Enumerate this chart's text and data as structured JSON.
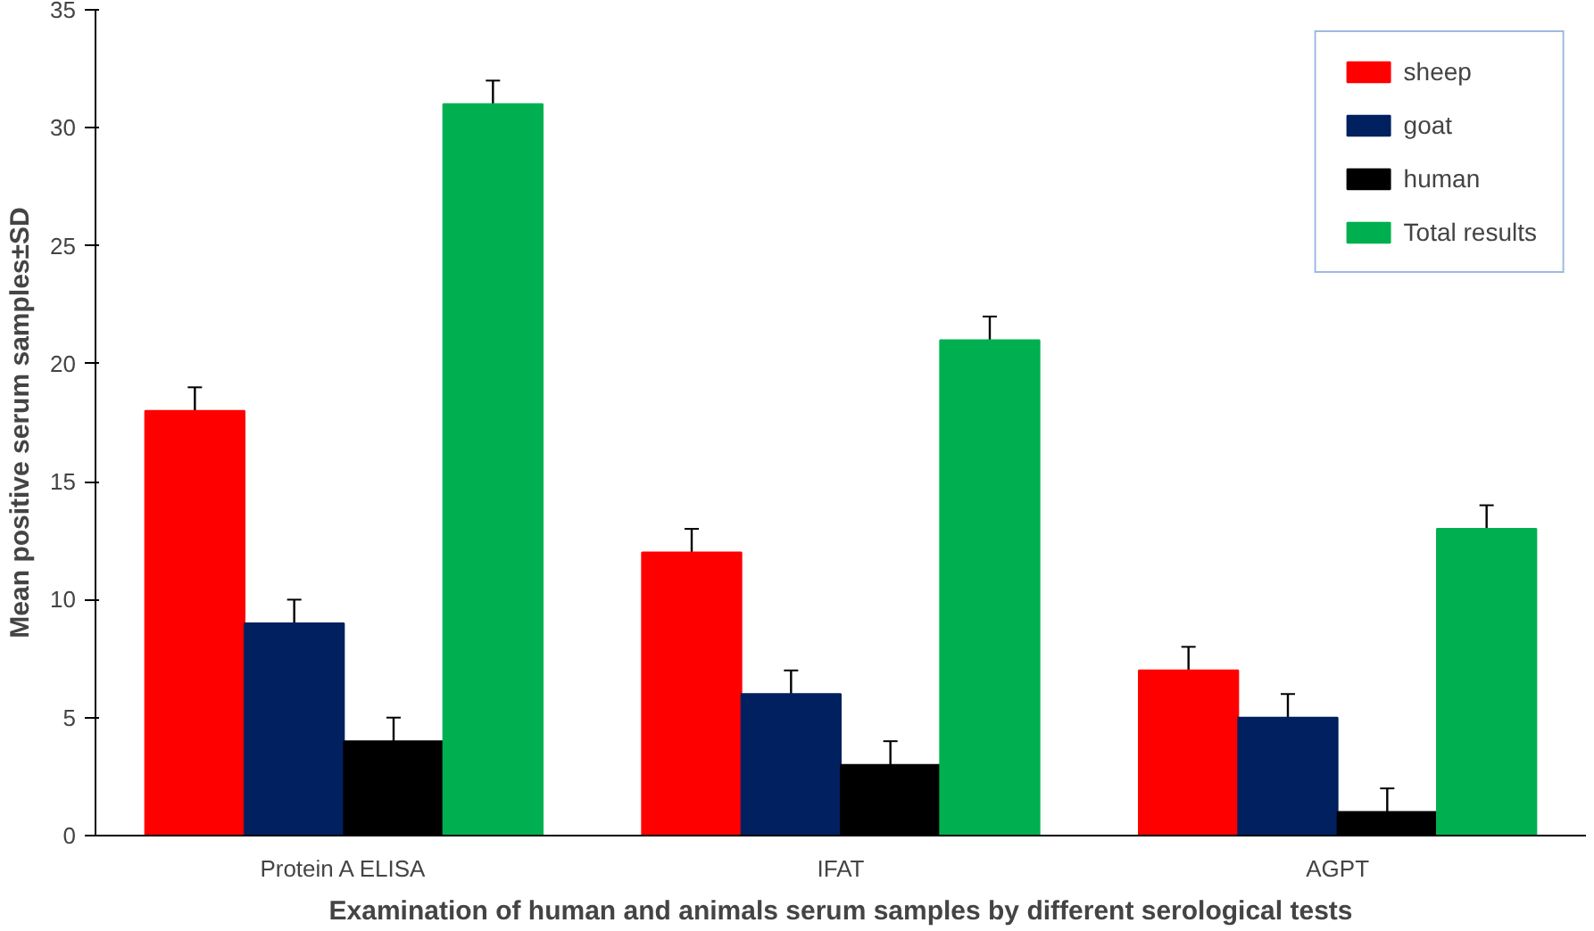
{
  "chart_data": {
    "type": "bar",
    "xlabel": "Examination of human and animals serum samples by different serological tests",
    "ylabel": "Mean positive serum samples±SD",
    "categories": [
      "Protein A ELISA",
      "IFAT",
      "AGPT"
    ],
    "series": [
      {
        "name": "sheep",
        "color": "#ff0000",
        "values": [
          18,
          12,
          7
        ],
        "errors": [
          1,
          1,
          1
        ]
      },
      {
        "name": "goat",
        "color": "#002060",
        "values": [
          9,
          6,
          5
        ],
        "errors": [
          1,
          1,
          1
        ]
      },
      {
        "name": "human",
        "color": "#000000",
        "values": [
          4,
          3,
          1
        ],
        "errors": [
          1,
          1,
          1
        ]
      },
      {
        "name": "Total results",
        "color": "#00b050",
        "values": [
          31,
          21,
          13
        ],
        "errors": [
          1,
          1,
          1
        ]
      }
    ],
    "ylim": [
      0,
      35
    ],
    "yticks": [
      0,
      5,
      10,
      15,
      20,
      25,
      30,
      35
    ],
    "grid": false,
    "legend": "top right"
  }
}
